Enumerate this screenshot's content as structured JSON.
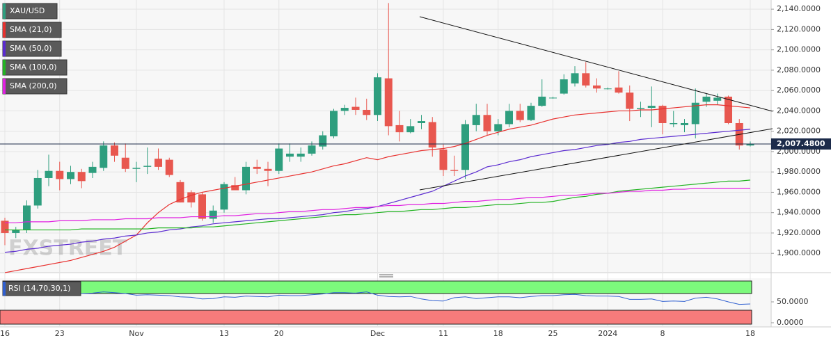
{
  "chart_data": {
    "type": "candlestick",
    "categories": [
      "16",
      null,
      null,
      null,
      null,
      "23",
      null,
      null,
      null,
      null,
      null,
      null,
      "Nov",
      null,
      null,
      null,
      null,
      null,
      null,
      null,
      "13",
      null,
      null,
      null,
      null,
      "20",
      null,
      null,
      null,
      null,
      null,
      null,
      null,
      null,
      "Dec",
      null,
      null,
      null,
      null,
      null,
      "11",
      null,
      null,
      null,
      null,
      "18",
      null,
      null,
      null,
      null,
      "25",
      null,
      null,
      null,
      null,
      "2024",
      null,
      null,
      null,
      null,
      "8",
      null,
      null,
      null,
      null,
      null,
      null,
      null,
      "18"
    ],
    "ohlc": {
      "name": "XAU/USD",
      "color": "#2e9e7e",
      "up_color": "#2e9e7e",
      "down_color": "#e8574f",
      "open": [
        1932,
        1920,
        1923,
        1947,
        1974,
        1981,
        1973,
        1980,
        1979,
        1984,
        2006,
        1994,
        1983,
        1985,
        1993,
        1992,
        1970,
        1960,
        1958,
        1934,
        1943,
        1967,
        1962,
        1985,
        1983,
        1981,
        1995,
        1995,
        1998,
        2005,
        2015,
        2040,
        2044,
        2041,
        2036,
        2072,
        2026,
        2019,
        2028,
        2029,
        2002,
        1982,
        1982,
        2026,
        2036,
        2020,
        2027,
        2040,
        2031,
        2045,
        2053,
        2057,
        2067,
        2077,
        2065,
        2062,
        2063,
        2058,
        2042,
        2043,
        2045,
        2027,
        2026,
        2027,
        2049,
        2050,
        2054,
        2028,
        2006
      ],
      "high": [
        1935,
        1926,
        1952,
        1982,
        1997,
        1990,
        1986,
        1983,
        1990,
        2010,
        2009,
        2008,
        1990,
        2004,
        2003,
        1994,
        1972,
        1962,
        1960,
        1947,
        1970,
        1975,
        1990,
        1992,
        1990,
        2008,
        2008,
        2004,
        2010,
        2020,
        2042,
        2046,
        2053,
        2052,
        2077,
        2146,
        2040,
        2032,
        2036,
        2034,
        2007,
        1996,
        2031,
        2047,
        2047,
        2032,
        2047,
        2047,
        2048,
        2071,
        2054,
        2076,
        2084,
        2088,
        2072,
        2063,
        2079,
        2065,
        2049,
        2064,
        2046,
        2040,
        2032,
        2062,
        2057,
        2057,
        2055,
        2032,
        2010
      ],
      "low": [
        1908,
        1915,
        1920,
        1944,
        1966,
        1962,
        1968,
        1964,
        1974,
        1981,
        1990,
        1980,
        1970,
        1978,
        1982,
        1975,
        1950,
        1945,
        1932,
        1930,
        1940,
        1962,
        1958,
        1978,
        1966,
        1978,
        1990,
        1990,
        1996,
        2002,
        2013,
        2036,
        2036,
        2031,
        2030,
        2016,
        2010,
        2018,
        2022,
        1995,
        1976,
        1976,
        1973,
        2020,
        2016,
        2016,
        2024,
        2029,
        2030,
        2044,
        2052,
        2056,
        2064,
        2063,
        2058,
        2061,
        2057,
        2030,
        2034,
        2024,
        2017,
        2024,
        2019,
        2013,
        2044,
        2046,
        2027,
        2002,
        2005
      ],
      "close": [
        1920,
        1923,
        1947,
        1974,
        1981,
        1973,
        1980,
        1971,
        1985,
        2006,
        1996,
        1983,
        1984,
        1986,
        1985,
        1977,
        1950,
        1950,
        1934,
        1942,
        1968,
        1962,
        1985,
        1983,
        1981,
        2003,
        1998,
        1998,
        2006,
        2016,
        2040,
        2043,
        2041,
        2036,
        2073,
        2025,
        2019,
        2025,
        2030,
        2004,
        1982,
        1981,
        2027,
        2036,
        2020,
        2027,
        2040,
        2031,
        2045,
        2054,
        2053,
        2071,
        2077,
        2065,
        2062,
        2062,
        2058,
        2042,
        2043,
        2045,
        2028,
        2028,
        2028,
        2048,
        2054,
        2053,
        2028,
        2006,
        2007.48
      ]
    },
    "series": [
      {
        "name": "SMA (21,0)",
        "color": "#e8312f",
        "values": [
          1881,
          1883,
          1885,
          1887,
          1889,
          1891,
          1893,
          1896,
          1899,
          1902,
          1906,
          1912,
          1918,
          1930,
          1940,
          1948,
          1953,
          1957,
          1960,
          1962,
          1964,
          1966,
          1968,
          1970,
          1972,
          1974,
          1976,
          1978,
          1980,
          1983,
          1986,
          1988,
          1991,
          1994,
          1992,
          1995,
          1997,
          1999,
          2001,
          2002,
          2003,
          2005,
          2008,
          2012,
          2016,
          2019,
          2022,
          2024,
          2026,
          2029,
          2032,
          2034,
          2036,
          2037,
          2038,
          2039,
          2040,
          2040,
          2041,
          2041,
          2042,
          2043,
          2044,
          2045,
          2046,
          2046,
          2045,
          2044,
          2043
        ]
      },
      {
        "name": "SMA (50,0)",
        "color": "#5b2bd0",
        "values": [
          1901,
          1902,
          1904,
          1905,
          1907,
          1908,
          1909,
          1911,
          1912,
          1914,
          1915,
          1917,
          1918,
          1920,
          1921,
          1923,
          1924,
          1926,
          1927,
          1929,
          1930,
          1931,
          1932,
          1933,
          1934,
          1934,
          1935,
          1936,
          1937,
          1938,
          1940,
          1941,
          1943,
          1944,
          1946,
          1949,
          1952,
          1955,
          1958,
          1961,
          1966,
          1971,
          1976,
          1980,
          1985,
          1987,
          1990,
          1992,
          1995,
          1997,
          1999,
          2001,
          2002,
          2004,
          2006,
          2007,
          2009,
          2010,
          2012,
          2013,
          2014,
          2015,
          2016,
          2017,
          2018,
          2019,
          2020,
          2021,
          2022
        ]
      },
      {
        "name": "SMA (100,0)",
        "color": "#22b322",
        "values": [
          1923,
          1923,
          1923,
          1923,
          1923,
          1923,
          1923,
          1924,
          1924,
          1924,
          1924,
          1924,
          1924,
          1924,
          1925,
          1925,
          1925,
          1925,
          1926,
          1926,
          1927,
          1928,
          1929,
          1930,
          1931,
          1932,
          1933,
          1934,
          1935,
          1936,
          1937,
          1938,
          1938,
          1939,
          1940,
          1941,
          1941,
          1942,
          1943,
          1943,
          1944,
          1945,
          1945,
          1946,
          1947,
          1948,
          1948,
          1949,
          1950,
          1950,
          1951,
          1953,
          1955,
          1956,
          1958,
          1959,
          1961,
          1962,
          1963,
          1964,
          1965,
          1966,
          1967,
          1968,
          1969,
          1970,
          1971,
          1971,
          1972
        ]
      },
      {
        "name": "SMA (200,0)",
        "color": "#e020e0",
        "values": [
          1930,
          1930,
          1931,
          1931,
          1931,
          1932,
          1932,
          1932,
          1933,
          1933,
          1933,
          1934,
          1934,
          1934,
          1935,
          1935,
          1935,
          1936,
          1936,
          1936,
          1937,
          1937,
          1938,
          1939,
          1939,
          1940,
          1941,
          1941,
          1942,
          1943,
          1943,
          1944,
          1945,
          1945,
          1946,
          1947,
          1947,
          1948,
          1948,
          1949,
          1949,
          1950,
          1951,
          1951,
          1952,
          1953,
          1953,
          1954,
          1955,
          1955,
          1956,
          1957,
          1957,
          1958,
          1959,
          1959,
          1960,
          1961,
          1961,
          1962,
          1962,
          1963,
          1963,
          1964,
          1964,
          1964,
          1964,
          1964,
          1964
        ]
      }
    ],
    "ylim": [
      1881,
      2149
    ],
    "yticks": [
      {
        "value": 1900,
        "label": "1,900.0000"
      },
      {
        "value": 1920,
        "label": "1,920.0000"
      },
      {
        "value": 1940,
        "label": "1,940.0000"
      },
      {
        "value": 1960,
        "label": "1,960.0000"
      },
      {
        "value": 1980,
        "label": "1,980.0000"
      },
      {
        "value": 2000,
        "label": "2,000.0000"
      },
      {
        "value": 2020,
        "label": "2,020.0000"
      },
      {
        "value": 2040,
        "label": "2,040.0000"
      },
      {
        "value": 2060,
        "label": "2,060.0000"
      },
      {
        "value": 2080,
        "label": "2,080.0000"
      },
      {
        "value": 2100,
        "label": "2,100.0000"
      },
      {
        "value": 2120,
        "label": "2,120.0000"
      },
      {
        "value": 2140,
        "label": "2,140.0000"
      }
    ],
    "grid": true,
    "last_price": {
      "value": 2007.48,
      "label": "2,007.4800"
    },
    "last_price_color": "#1c2b4a",
    "watermark": "FXSTREET",
    "rsi": {
      "name": "RSI (14,70,30,1)",
      "color": "#2f5fd0",
      "values": [
        74,
        73,
        72,
        73,
        74,
        70,
        71,
        70,
        71,
        74,
        72,
        70,
        66,
        67,
        66,
        65,
        62,
        61,
        57,
        58,
        62,
        61,
        64,
        63,
        62,
        66,
        65,
        65,
        67,
        69,
        72,
        72,
        71,
        74,
        66,
        63,
        62,
        63,
        57,
        53,
        52,
        60,
        62,
        58,
        60,
        62,
        62,
        60,
        63,
        65,
        65,
        67,
        68,
        65,
        64,
        64,
        63,
        56,
        56,
        57,
        51,
        52,
        51,
        59,
        61,
        57,
        50,
        44,
        45
      ],
      "ylim": [
        0,
        100
      ],
      "yticks": [
        {
          "value": 50,
          "label": "50.0000"
        },
        {
          "value": 0,
          "label": "0.0000"
        }
      ],
      "overbought": 70,
      "oversold": 30,
      "overbought_color": "#7cf97c",
      "oversold_color": "#f77b7b"
    }
  }
}
